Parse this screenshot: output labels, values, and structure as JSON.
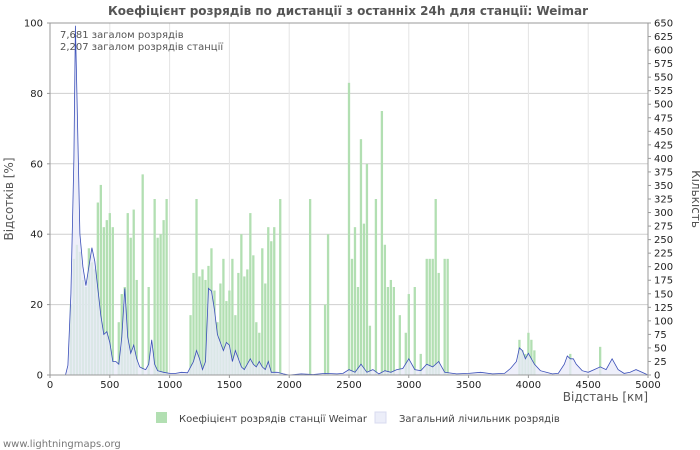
{
  "footer": "www.lightningmaps.org",
  "colors": {
    "bar": "#b2dfb2",
    "line": "#3a4fb8",
    "line_fill": "#e8eaf8",
    "grid": "#cfcfcf",
    "text": "#555555"
  },
  "chart_data": {
    "type": "bar",
    "title": "Коефіцієнт розрядів по дистанції з останніх 24h для станції: Weimar",
    "xlabel": "Відстань   [км]",
    "ylabel": "Відсотків   [%]",
    "y2label": "Кількість",
    "xlim": [
      0,
      5000
    ],
    "ylim": [
      0,
      100
    ],
    "y2lim": [
      0,
      650
    ],
    "xticks": [
      0,
      500,
      1000,
      1500,
      2000,
      2500,
      3000,
      3500,
      4000,
      4500,
      5000
    ],
    "yticks": [
      0,
      20,
      40,
      60,
      80,
      100
    ],
    "y2ticks": [
      0,
      25,
      50,
      75,
      100,
      125,
      150,
      175,
      200,
      225,
      250,
      275,
      300,
      325,
      350,
      375,
      400,
      425,
      450,
      475,
      500,
      525,
      550,
      575,
      600,
      625,
      650
    ],
    "annotations": [
      "7,681 загалом розрядів",
      "2,207 загалом розрядів станції"
    ],
    "legend": [
      "Коефіцієнт розрядів станції Weimar",
      "Загальний лічильник розрядів"
    ],
    "series": [
      {
        "name": "Коефіцієнт розрядів станції Weimar",
        "kind": "bar",
        "axis": "left",
        "points": [
          [
            175,
            20
          ],
          [
            200,
            33
          ],
          [
            225,
            37
          ],
          [
            250,
            35
          ],
          [
            275,
            27
          ],
          [
            300,
            25
          ],
          [
            325,
            36
          ],
          [
            350,
            32
          ],
          [
            375,
            30
          ],
          [
            400,
            49
          ],
          [
            425,
            54
          ],
          [
            450,
            42
          ],
          [
            475,
            44
          ],
          [
            500,
            46
          ],
          [
            525,
            42
          ],
          [
            575,
            15
          ],
          [
            600,
            23
          ],
          [
            625,
            25
          ],
          [
            650,
            46
          ],
          [
            675,
            39
          ],
          [
            700,
            47
          ],
          [
            725,
            27
          ],
          [
            775,
            57
          ],
          [
            825,
            25
          ],
          [
            875,
            50
          ],
          [
            900,
            39
          ],
          [
            925,
            40
          ],
          [
            950,
            44
          ],
          [
            975,
            50
          ],
          [
            1175,
            17
          ],
          [
            1200,
            29
          ],
          [
            1225,
            50
          ],
          [
            1250,
            28
          ],
          [
            1275,
            30
          ],
          [
            1300,
            27
          ],
          [
            1325,
            31
          ],
          [
            1350,
            36
          ],
          [
            1375,
            24
          ],
          [
            1400,
            15
          ],
          [
            1425,
            26
          ],
          [
            1450,
            33
          ],
          [
            1475,
            21
          ],
          [
            1500,
            24
          ],
          [
            1525,
            33
          ],
          [
            1550,
            17
          ],
          [
            1575,
            29
          ],
          [
            1600,
            40
          ],
          [
            1625,
            28
          ],
          [
            1650,
            30
          ],
          [
            1675,
            46
          ],
          [
            1700,
            34
          ],
          [
            1725,
            15
          ],
          [
            1750,
            12
          ],
          [
            1775,
            36
          ],
          [
            1800,
            26
          ],
          [
            1825,
            42
          ],
          [
            1850,
            38
          ],
          [
            1875,
            42
          ],
          [
            1925,
            50
          ],
          [
            2175,
            50
          ],
          [
            2300,
            20
          ],
          [
            2325,
            40
          ],
          [
            2500,
            83
          ],
          [
            2525,
            33
          ],
          [
            2550,
            42
          ],
          [
            2575,
            25
          ],
          [
            2600,
            67
          ],
          [
            2625,
            43
          ],
          [
            2650,
            60
          ],
          [
            2675,
            14
          ],
          [
            2725,
            50
          ],
          [
            2775,
            75
          ],
          [
            2800,
            37
          ],
          [
            2825,
            25
          ],
          [
            2850,
            27
          ],
          [
            2875,
            25
          ],
          [
            2925,
            17
          ],
          [
            2975,
            12
          ],
          [
            3000,
            23
          ],
          [
            3050,
            25
          ],
          [
            3100,
            6
          ],
          [
            3150,
            33
          ],
          [
            3175,
            33
          ],
          [
            3200,
            33
          ],
          [
            3225,
            50
          ],
          [
            3250,
            29
          ],
          [
            3300,
            33
          ],
          [
            3325,
            33
          ],
          [
            3925,
            10
          ],
          [
            3950,
            7
          ],
          [
            3975,
            6
          ],
          [
            4000,
            12
          ],
          [
            4025,
            10
          ],
          [
            4050,
            7
          ],
          [
            4350,
            6
          ],
          [
            4600,
            8
          ]
        ]
      },
      {
        "name": "Загальний лічильник розрядів",
        "kind": "area",
        "axis": "right",
        "points": [
          [
            130,
            0
          ],
          [
            150,
            18
          ],
          [
            175,
            150
          ],
          [
            200,
            400
          ],
          [
            212,
            645
          ],
          [
            225,
            520
          ],
          [
            250,
            260
          ],
          [
            275,
            200
          ],
          [
            300,
            165
          ],
          [
            325,
            200
          ],
          [
            350,
            235
          ],
          [
            375,
            210
          ],
          [
            400,
            160
          ],
          [
            425,
            110
          ],
          [
            450,
            75
          ],
          [
            475,
            80
          ],
          [
            500,
            60
          ],
          [
            525,
            25
          ],
          [
            550,
            25
          ],
          [
            575,
            20
          ],
          [
            600,
            70
          ],
          [
            625,
            160
          ],
          [
            650,
            70
          ],
          [
            675,
            40
          ],
          [
            700,
            55
          ],
          [
            725,
            30
          ],
          [
            750,
            15
          ],
          [
            775,
            12
          ],
          [
            800,
            10
          ],
          [
            825,
            20
          ],
          [
            850,
            65
          ],
          [
            875,
            20
          ],
          [
            900,
            8
          ],
          [
            950,
            5
          ],
          [
            1000,
            3
          ],
          [
            1050,
            3
          ],
          [
            1100,
            5
          ],
          [
            1150,
            4
          ],
          [
            1200,
            25
          ],
          [
            1225,
            45
          ],
          [
            1250,
            30
          ],
          [
            1275,
            10
          ],
          [
            1300,
            25
          ],
          [
            1325,
            160
          ],
          [
            1350,
            155
          ],
          [
            1375,
            120
          ],
          [
            1400,
            75
          ],
          [
            1425,
            60
          ],
          [
            1450,
            45
          ],
          [
            1475,
            60
          ],
          [
            1500,
            55
          ],
          [
            1525,
            25
          ],
          [
            1550,
            45
          ],
          [
            1575,
            30
          ],
          [
            1600,
            15
          ],
          [
            1625,
            10
          ],
          [
            1650,
            20
          ],
          [
            1675,
            30
          ],
          [
            1700,
            20
          ],
          [
            1725,
            15
          ],
          [
            1750,
            25
          ],
          [
            1775,
            15
          ],
          [
            1800,
            10
          ],
          [
            1825,
            25
          ],
          [
            1850,
            5
          ],
          [
            1900,
            5
          ],
          [
            1950,
            2
          ],
          [
            2000,
            0
          ],
          [
            2100,
            2
          ],
          [
            2200,
            1
          ],
          [
            2300,
            3
          ],
          [
            2400,
            2
          ],
          [
            2450,
            3
          ],
          [
            2500,
            10
          ],
          [
            2550,
            5
          ],
          [
            2600,
            20
          ],
          [
            2650,
            5
          ],
          [
            2700,
            10
          ],
          [
            2750,
            2
          ],
          [
            2800,
            8
          ],
          [
            2850,
            5
          ],
          [
            2900,
            10
          ],
          [
            2950,
            12
          ],
          [
            3000,
            30
          ],
          [
            3050,
            10
          ],
          [
            3100,
            8
          ],
          [
            3150,
            20
          ],
          [
            3200,
            15
          ],
          [
            3250,
            25
          ],
          [
            3300,
            5
          ],
          [
            3400,
            2
          ],
          [
            3500,
            3
          ],
          [
            3600,
            5
          ],
          [
            3700,
            2
          ],
          [
            3800,
            3
          ],
          [
            3850,
            12
          ],
          [
            3900,
            25
          ],
          [
            3925,
            50
          ],
          [
            3950,
            45
          ],
          [
            3975,
            30
          ],
          [
            4000,
            40
          ],
          [
            4025,
            30
          ],
          [
            4050,
            20
          ],
          [
            4100,
            8
          ],
          [
            4150,
            5
          ],
          [
            4200,
            2
          ],
          [
            4250,
            3
          ],
          [
            4300,
            20
          ],
          [
            4325,
            35
          ],
          [
            4350,
            30
          ],
          [
            4375,
            30
          ],
          [
            4400,
            20
          ],
          [
            4450,
            8
          ],
          [
            4500,
            5
          ],
          [
            4550,
            10
          ],
          [
            4600,
            15
          ],
          [
            4650,
            10
          ],
          [
            4700,
            30
          ],
          [
            4750,
            10
          ],
          [
            4800,
            3
          ],
          [
            4850,
            5
          ],
          [
            4900,
            10
          ],
          [
            4950,
            5
          ],
          [
            5000,
            0
          ]
        ]
      }
    ]
  }
}
